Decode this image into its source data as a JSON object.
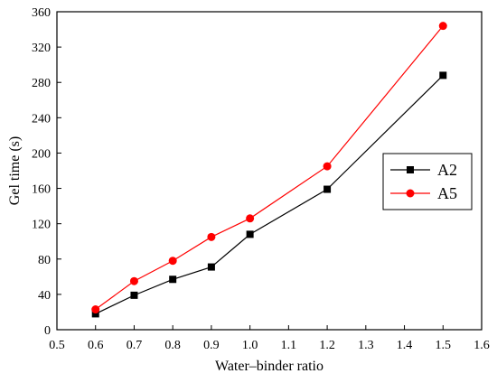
{
  "chart_data": {
    "type": "line",
    "xlabel": "Water–binder ratio",
    "ylabel": "Gel time (s)",
    "xlim": [
      0.5,
      1.6
    ],
    "ylim": [
      0,
      360
    ],
    "xticks": [
      "0.5",
      "0.6",
      "0.7",
      "0.8",
      "0.9",
      "1.0",
      "1.1",
      "1.2",
      "1.3",
      "1.4",
      "1.5",
      "1.6"
    ],
    "yticks": [
      "0",
      "40",
      "80",
      "120",
      "160",
      "200",
      "240",
      "280",
      "320",
      "360"
    ],
    "grid": false,
    "legend_position": "right",
    "series": [
      {
        "name": "A2",
        "color": "#000000",
        "marker": "square",
        "x": [
          0.6,
          0.7,
          0.8,
          0.9,
          1.0,
          1.2,
          1.5
        ],
        "y": [
          18,
          39,
          57,
          71,
          108,
          159,
          288
        ]
      },
      {
        "name": "A5",
        "color": "#ff0000",
        "marker": "circle",
        "x": [
          0.6,
          0.7,
          0.8,
          0.9,
          1.0,
          1.2,
          1.5
        ],
        "y": [
          23,
          55,
          78,
          105,
          126,
          185,
          344
        ]
      }
    ]
  }
}
